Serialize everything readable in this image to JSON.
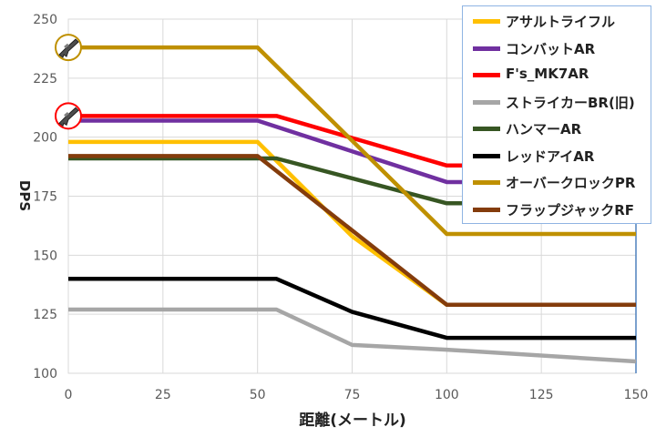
{
  "chart_data": {
    "type": "line",
    "xlabel": "距離(メートル)",
    "ylabel": "DPS",
    "xlim": [
      0,
      150
    ],
    "ylim": [
      100,
      250
    ],
    "x_ticks": [
      0,
      25,
      50,
      75,
      100,
      125,
      150
    ],
    "y_ticks": [
      100,
      125,
      150,
      175,
      200,
      225,
      250
    ],
    "grid": true,
    "legend_position": "top-right",
    "series": [
      {
        "name": "アサルトライフル",
        "color": "#ffc000",
        "points": [
          [
            0,
            198
          ],
          [
            50,
            198
          ],
          [
            75,
            158
          ],
          [
            100,
            129
          ],
          [
            150,
            129
          ]
        ]
      },
      {
        "name": "コンバットAR",
        "color": "#7030a0",
        "points": [
          [
            0,
            207
          ],
          [
            50,
            207
          ],
          [
            75,
            194
          ],
          [
            100,
            181
          ],
          [
            150,
            181
          ]
        ]
      },
      {
        "name": "F's_MK7AR",
        "color": "#ff0000",
        "points": [
          [
            0,
            209
          ],
          [
            55,
            209
          ],
          [
            100,
            188
          ],
          [
            150,
            188
          ]
        ]
      },
      {
        "name": "ストライカーBR(旧)",
        "color": "#a6a6a6",
        "points": [
          [
            0,
            127
          ],
          [
            55,
            127
          ],
          [
            75,
            112
          ],
          [
            100,
            110
          ],
          [
            150,
            105
          ]
        ]
      },
      {
        "name": "ハンマーAR",
        "color": "#375623",
        "points": [
          [
            0,
            191
          ],
          [
            55,
            191
          ],
          [
            100,
            172
          ],
          [
            150,
            172
          ]
        ]
      },
      {
        "name": "レッドアイAR",
        "color": "#000000",
        "points": [
          [
            0,
            140
          ],
          [
            55,
            140
          ],
          [
            75,
            126
          ],
          [
            100,
            115
          ],
          [
            150,
            115
          ]
        ]
      },
      {
        "name": "オーバークロックPR",
        "color": "#bf9000",
        "points": [
          [
            0,
            238
          ],
          [
            50,
            238
          ],
          [
            100,
            159
          ],
          [
            150,
            159
          ]
        ]
      },
      {
        "name": "フラップジャックRF",
        "color": "#843c0c",
        "points": [
          [
            0,
            192
          ],
          [
            50,
            192
          ],
          [
            100,
            129
          ],
          [
            150,
            129
          ]
        ]
      }
    ],
    "markers": [
      {
        "icon": "assault-rifle-icon",
        "ring_color": "#bf9000",
        "x": 0,
        "y": 238
      },
      {
        "icon": "assault-rifle-icon",
        "ring_color": "#ff0000",
        "x": 0,
        "y": 209
      }
    ]
  }
}
